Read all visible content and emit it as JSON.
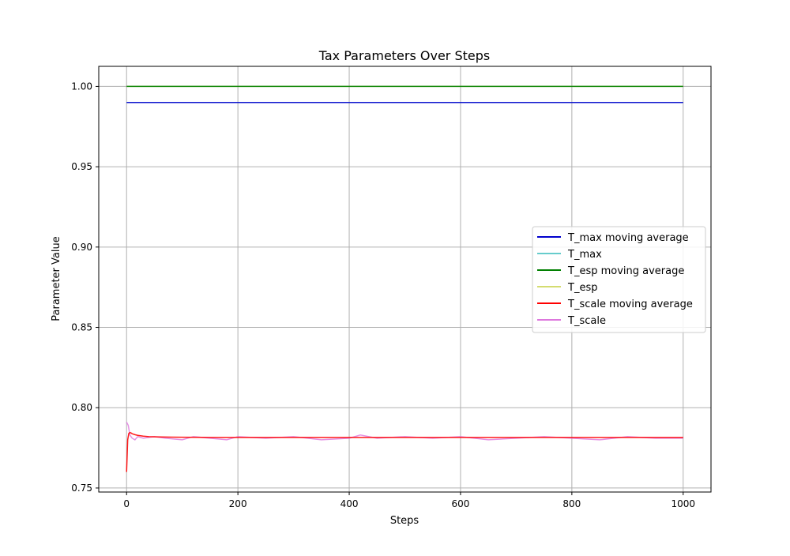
{
  "chart_data": {
    "type": "line",
    "title": "Tax Parameters Over Steps",
    "xlabel": "Steps",
    "ylabel": "Parameter Value",
    "xlim": [
      -50,
      1050
    ],
    "ylim": [
      0.7475,
      1.0125
    ],
    "xticks": [
      0,
      200,
      400,
      600,
      800,
      1000
    ],
    "xtick_labels": [
      "0",
      "200",
      "400",
      "600",
      "800",
      "1000"
    ],
    "yticks": [
      0.75,
      0.8,
      0.85,
      0.9,
      0.95,
      1.0
    ],
    "ytick_labels": [
      "0.75",
      "0.80",
      "0.85",
      "0.90",
      "0.95",
      "1.00"
    ],
    "grid": true,
    "legend_placement": "center-right",
    "series": [
      {
        "name": "T_max moving average",
        "color": "#0000cd",
        "kind": "moving_average",
        "x": [
          0,
          1000
        ],
        "y": [
          0.99,
          0.99
        ]
      },
      {
        "name": "T_max",
        "color": "#66cccc",
        "kind": "raw",
        "x": [
          0,
          1000
        ],
        "y": [
          0.99,
          0.99
        ]
      },
      {
        "name": "T_esp moving average",
        "color": "#008000",
        "kind": "moving_average",
        "x": [
          0,
          1000
        ],
        "y": [
          1.0,
          1.0
        ]
      },
      {
        "name": "T_esp",
        "color": "#d4dc70",
        "kind": "raw",
        "x": [
          0,
          1000
        ],
        "y": [
          1.0,
          1.0
        ]
      },
      {
        "name": "T_scale moving average",
        "color": "#ff0000",
        "kind": "moving_average",
        "x": [
          0,
          2,
          4,
          6,
          8,
          10,
          15,
          20,
          30,
          40,
          60,
          80,
          100,
          150,
          200,
          300,
          400,
          500,
          600,
          700,
          800,
          900,
          1000
        ],
        "y": [
          0.76,
          0.78,
          0.784,
          0.7845,
          0.7843,
          0.7838,
          0.7832,
          0.7828,
          0.7823,
          0.782,
          0.7818,
          0.7817,
          0.7816,
          0.7815,
          0.7815,
          0.7815,
          0.7815,
          0.7815,
          0.7815,
          0.7815,
          0.7815,
          0.7815,
          0.7815
        ]
      },
      {
        "name": "T_scale",
        "color": "#dd77dd",
        "kind": "raw",
        "x": [
          0,
          3,
          6,
          10,
          15,
          20,
          30,
          50,
          70,
          100,
          120,
          150,
          180,
          200,
          250,
          300,
          350,
          400,
          420,
          450,
          500,
          550,
          600,
          650,
          700,
          750,
          800,
          850,
          900,
          950,
          1000
        ],
        "y": [
          0.791,
          0.789,
          0.783,
          0.781,
          0.78,
          0.782,
          0.781,
          0.782,
          0.781,
          0.78,
          0.782,
          0.781,
          0.78,
          0.782,
          0.781,
          0.782,
          0.78,
          0.781,
          0.783,
          0.781,
          0.782,
          0.781,
          0.782,
          0.78,
          0.781,
          0.782,
          0.781,
          0.78,
          0.782,
          0.781,
          0.781
        ]
      }
    ]
  }
}
